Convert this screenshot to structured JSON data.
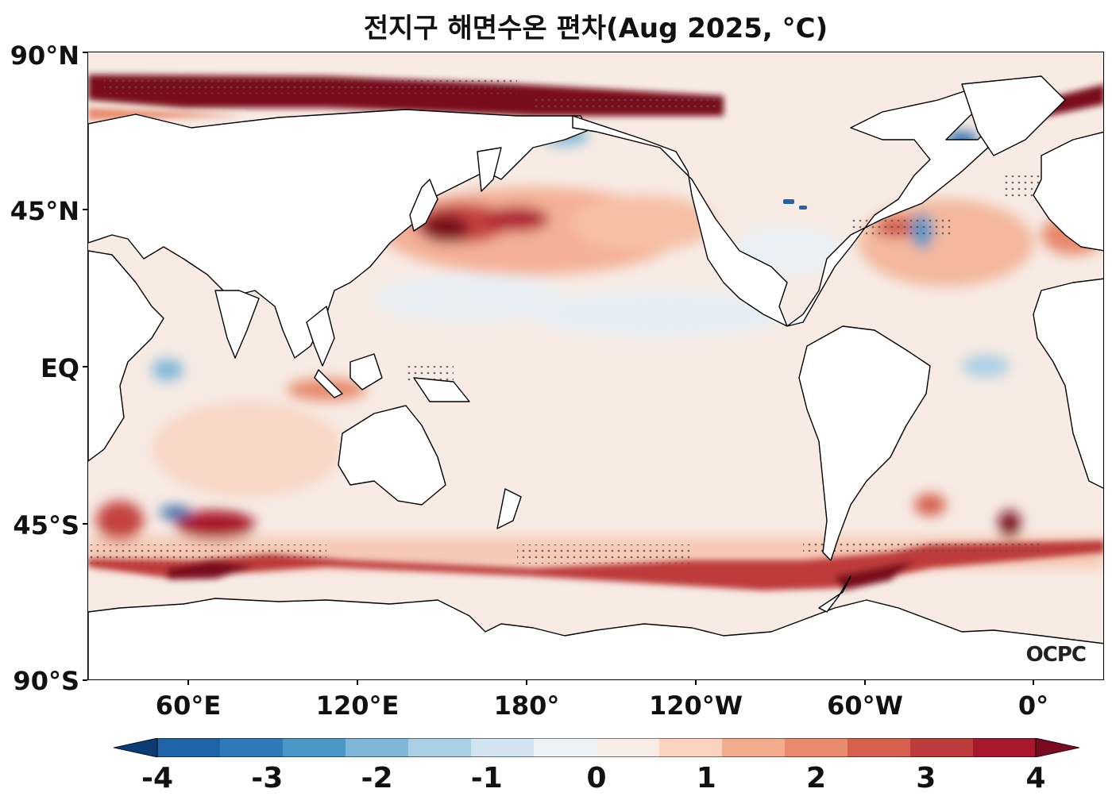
{
  "title": "전지구 해면수온 편차(Aug 2025, °C)",
  "logo": "OCPC",
  "lat_labels": [
    "90°N",
    "45°N",
    "EQ",
    "45°S",
    "90°S"
  ],
  "lon_labels": [
    "60°E",
    "120°E",
    "180°",
    "120°W",
    "60°W",
    "0°"
  ],
  "colorbar": {
    "ticks": [
      "-4",
      "-3",
      "-2",
      "-1",
      "0",
      "1",
      "2",
      "3",
      "4"
    ],
    "colors": [
      "#0b3b73",
      "#1f63a8",
      "#2f7ab8",
      "#4c97c8",
      "#80b7d9",
      "#aacfe5",
      "#d2e4f0",
      "#ecf1f5",
      "#f8ece6",
      "#fbd3bf",
      "#f3ac8c",
      "#e88a6c",
      "#d6604d",
      "#bd3b3b",
      "#a8182c",
      "#7a0a1f"
    ]
  },
  "colors": {
    "land": "#ffffff",
    "coast": "#000000",
    "stipple": "#555555"
  }
}
